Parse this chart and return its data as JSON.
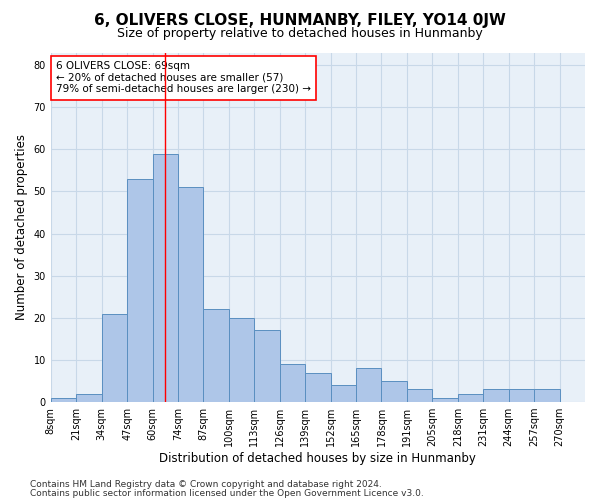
{
  "title": "6, OLIVERS CLOSE, HUNMANBY, FILEY, YO14 0JW",
  "subtitle": "Size of property relative to detached houses in Hunmanby",
  "xlabel": "Distribution of detached houses by size in Hunmanby",
  "ylabel": "Number of detached properties",
  "categories": [
    "8sqm",
    "21sqm",
    "34sqm",
    "47sqm",
    "60sqm",
    "74sqm",
    "87sqm",
    "100sqm",
    "113sqm",
    "126sqm",
    "139sqm",
    "152sqm",
    "165sqm",
    "178sqm",
    "191sqm",
    "205sqm",
    "218sqm",
    "231sqm",
    "244sqm",
    "257sqm",
    "270sqm"
  ],
  "values": [
    1,
    2,
    21,
    53,
    59,
    51,
    22,
    20,
    17,
    9,
    7,
    4,
    8,
    5,
    3,
    1,
    2,
    3,
    3,
    3
  ],
  "bar_color": "#aec6e8",
  "bar_edge_color": "#5a8fc0",
  "red_line_x": 4.5,
  "annotation_box_text": "6 OLIVERS CLOSE: 69sqm\n← 20% of detached houses are smaller (57)\n79% of semi-detached houses are larger (230) →",
  "ylim": [
    0,
    83
  ],
  "yticks": [
    0,
    10,
    20,
    30,
    40,
    50,
    60,
    70,
    80
  ],
  "grid_color": "#c8d8e8",
  "background_color": "#e8f0f8",
  "footer_line1": "Contains HM Land Registry data © Crown copyright and database right 2024.",
  "footer_line2": "Contains public sector information licensed under the Open Government Licence v3.0.",
  "title_fontsize": 11,
  "subtitle_fontsize": 9,
  "xlabel_fontsize": 8.5,
  "ylabel_fontsize": 8.5,
  "tick_fontsize": 7,
  "footer_fontsize": 6.5,
  "annotation_fontsize": 7.5
}
